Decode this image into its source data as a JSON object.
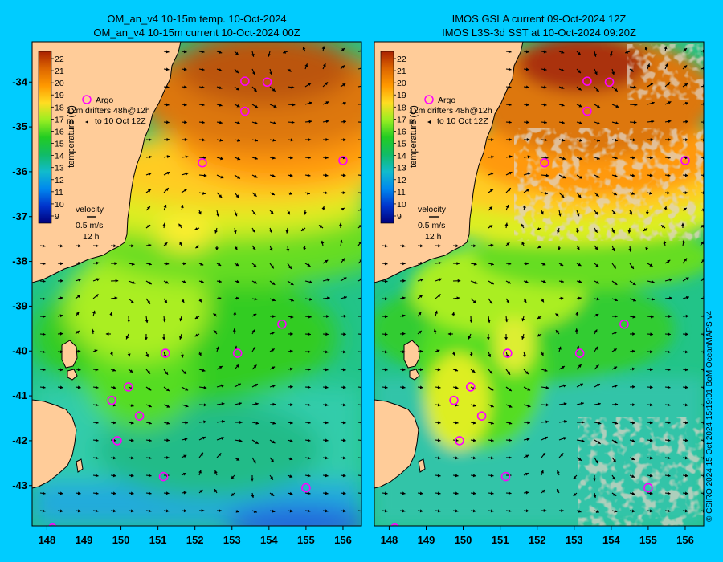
{
  "left_panel": {
    "title_line1": "OM_an_v4  10-15m temp. 10-Oct-2024",
    "title_line2": "OM_an_v4  10-15m current 10-Oct-2024 00Z"
  },
  "right_panel": {
    "title_line1": "IMOS GSLA current 09-Oct-2024 12Z",
    "title_line2": "IMOS L3S-3d SST at 10-Oct-2024 09:20Z"
  },
  "colorbar": {
    "label": "temperature (C)",
    "ticks": [
      "22",
      "21",
      "20",
      "19",
      "18",
      "17",
      "16",
      "15",
      "14",
      "13",
      "12",
      "11",
      "10",
      "9"
    ]
  },
  "legend": {
    "argo": "Argo",
    "drifters_line1": "12m",
    "drifters_line2": "drifters 48h@12h",
    "drifters_line3": "m",
    "drifters_line4": "to 10 Oct 12Z",
    "velocity_title": "velocity",
    "velocity_speed": "0.5 m/s",
    "velocity_time": "12 h"
  },
  "axes": {
    "lat_labels": [
      "-34",
      "-35",
      "-36",
      "-37",
      "-38",
      "-39",
      "-40",
      "-41",
      "-42",
      "-43"
    ],
    "lon_labels": [
      "148",
      "149",
      "150",
      "151",
      "152",
      "153",
      "154",
      "155",
      "156"
    ],
    "lat_range": [
      -43.9,
      -33.1
    ],
    "lon_range": [
      147.6,
      156.5
    ]
  },
  "argo_floats": [
    {
      "lon": 153.35,
      "lat": -33.98
    },
    {
      "lon": 153.35,
      "lat": -34.65
    },
    {
      "lon": 153.95,
      "lat": -34.0
    },
    {
      "lon": 152.2,
      "lat": -35.8
    },
    {
      "lon": 156.0,
      "lat": -35.75
    },
    {
      "lon": 154.35,
      "lat": -39.4
    },
    {
      "lon": 151.2,
      "lat": -40.05
    },
    {
      "lon": 153.15,
      "lat": -40.05
    },
    {
      "lon": 150.2,
      "lat": -40.8
    },
    {
      "lon": 149.75,
      "lat": -41.1
    },
    {
      "lon": 150.5,
      "lat": -41.45
    },
    {
      "lon": 149.9,
      "lat": -42.0
    },
    {
      "lon": 151.15,
      "lat": -42.8
    },
    {
      "lon": 155.0,
      "lat": -43.05
    },
    {
      "lon": 148.15,
      "lat": -43.95
    }
  ],
  "colors": {
    "background": "#00ccff",
    "land": "#ffcc99",
    "argo": "#ff00ff",
    "drifter": "#ff4040",
    "cloud": "#c0a890"
  },
  "credit": "© CSIRO 2024  15 Oct 2024 15:19:01 BoM OceanMAPS v4"
}
